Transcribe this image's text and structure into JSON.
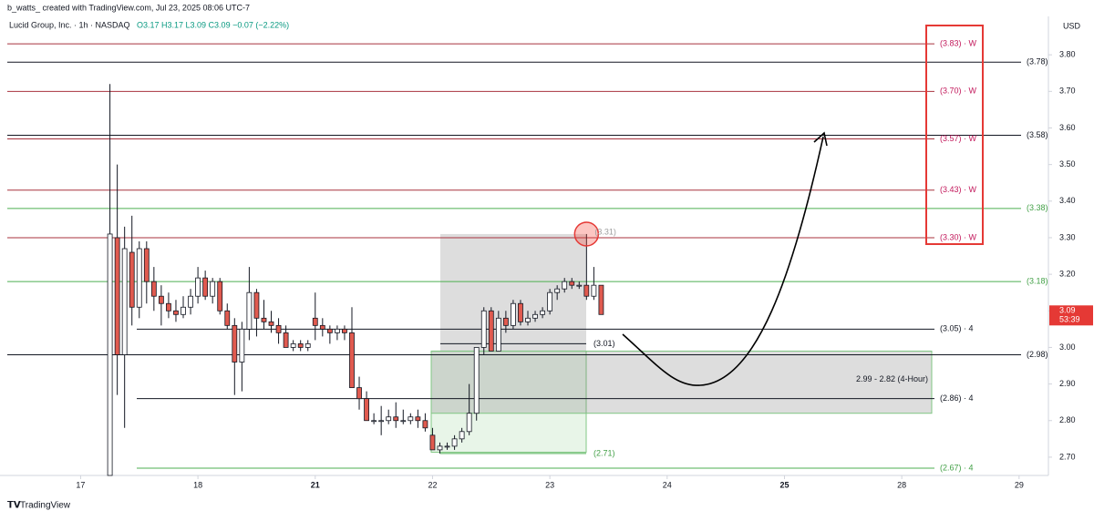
{
  "credit": "b_watts_ created with TradingView.com, Jul 23, 2025 08:06 UTC-7",
  "footer": "TradingView",
  "chart_data": {
    "type": "candlestick",
    "title": "Lucid Group, Inc. · 1h · NASDAQ",
    "ohlc_legend": "O3.17 H3.17 L3.09 C3.09 −0.07 (−2.22%)",
    "currency": "USD",
    "last_price": 3.09,
    "last_price_label": "3.09",
    "countdown": "53:39",
    "up_color": "#ffffff",
    "down_color": "#e05a4f",
    "x": [
      4,
      5,
      6,
      7,
      8,
      9,
      10,
      11,
      12,
      13,
      14,
      15,
      16,
      17,
      18,
      19,
      20,
      21,
      22,
      23,
      24,
      25,
      26,
      27,
      28,
      29,
      30,
      31,
      32,
      33,
      34,
      35,
      36,
      37,
      38,
      39,
      40,
      41,
      42,
      43,
      44,
      45,
      46,
      47,
      48,
      49,
      50,
      51,
      52,
      53,
      54,
      55,
      56,
      57,
      58,
      59,
      60,
      61,
      62,
      63,
      64,
      65,
      66,
      67,
      68,
      69,
      70,
      71
    ],
    "open": [
      2.65,
      3.3,
      2.98,
      3.26,
      3.11,
      3.27,
      3.18,
      3.14,
      3.12,
      3.1,
      3.09,
      3.11,
      3.14,
      3.19,
      3.14,
      3.18,
      3.1,
      3.06,
      2.96,
      3.05,
      3.15,
      3.08,
      3.07,
      3.06,
      3.04,
      3.0,
      3.01,
      3.0,
      3.08,
      3.06,
      3.05,
      3.04,
      3.05,
      3.04,
      2.89,
      2.86,
      2.8,
      2.8,
      2.8,
      2.81,
      2.8,
      2.8,
      2.81,
      2.8,
      2.76,
      2.72,
      2.73,
      2.73,
      2.75,
      2.77,
      2.82,
      3.0,
      3.1,
      2.99,
      3.08,
      3.06,
      3.12,
      3.07,
      3.08,
      3.09,
      3.1,
      3.15,
      3.16,
      3.18,
      3.17,
      3.17,
      3.14,
      3.17
    ],
    "high": [
      3.72,
      3.5,
      3.33,
      3.36,
      3.29,
      3.29,
      3.22,
      3.17,
      3.15,
      3.13,
      3.14,
      3.16,
      3.22,
      3.21,
      3.19,
      3.19,
      3.12,
      3.08,
      3.07,
      3.22,
      3.16,
      3.13,
      3.1,
      3.08,
      3.06,
      3.02,
      3.02,
      3.02,
      3.15,
      3.08,
      3.06,
      3.06,
      3.06,
      3.11,
      2.92,
      2.88,
      2.82,
      2.84,
      2.83,
      2.85,
      2.83,
      2.82,
      2.83,
      2.82,
      2.78,
      2.74,
      2.74,
      2.76,
      2.78,
      2.9,
      3.0,
      3.11,
      3.11,
      3.1,
      3.1,
      3.13,
      3.13,
      3.1,
      3.1,
      3.11,
      3.16,
      3.17,
      3.19,
      3.19,
      3.18,
      3.31,
      3.22,
      3.17
    ],
    "low": [
      2.65,
      2.87,
      2.78,
      3.06,
      3.08,
      3.12,
      3.1,
      3.06,
      3.08,
      3.07,
      3.08,
      3.09,
      3.12,
      3.13,
      3.12,
      3.09,
      3.05,
      2.87,
      2.88,
      3.02,
      3.03,
      3.05,
      3.04,
      3.01,
      3.0,
      2.99,
      2.99,
      2.99,
      3.02,
      3.03,
      3.01,
      3.02,
      3.02,
      2.89,
      2.83,
      2.8,
      2.79,
      2.76,
      2.79,
      2.78,
      2.79,
      2.79,
      2.78,
      2.77,
      2.72,
      2.71,
      2.72,
      2.72,
      2.74,
      2.76,
      2.8,
      2.98,
      2.99,
      2.99,
      3.04,
      3.05,
      3.06,
      3.06,
      3.07,
      3.08,
      3.09,
      3.13,
      3.15,
      3.16,
      3.16,
      3.13,
      3.13,
      3.09
    ],
    "close": [
      3.31,
      2.98,
      3.27,
      3.11,
      3.27,
      3.18,
      3.14,
      3.12,
      3.1,
      3.09,
      3.11,
      3.14,
      3.19,
      3.14,
      3.18,
      3.1,
      3.06,
      2.96,
      3.05,
      3.15,
      3.08,
      3.07,
      3.06,
      3.04,
      3.0,
      3.01,
      3.0,
      3.01,
      3.06,
      3.05,
      3.04,
      3.05,
      3.04,
      2.89,
      2.86,
      2.8,
      2.8,
      2.8,
      2.81,
      2.8,
      2.8,
      2.81,
      2.8,
      2.78,
      2.72,
      2.73,
      2.73,
      2.75,
      2.77,
      2.82,
      3.0,
      3.1,
      2.99,
      3.08,
      3.06,
      3.12,
      3.07,
      3.08,
      3.09,
      3.1,
      3.15,
      3.16,
      3.18,
      3.17,
      3.17,
      3.14,
      3.17,
      3.09
    ],
    "xlim": [
      -10,
      132
    ],
    "xticks": [
      {
        "value": 0,
        "label": "17"
      },
      {
        "value": 16,
        "label": "18"
      },
      {
        "value": 32,
        "label": "21"
      },
      {
        "value": 48,
        "label": "22"
      },
      {
        "value": 64,
        "label": "23"
      },
      {
        "value": 80,
        "label": "24"
      },
      {
        "value": 96,
        "label": "25"
      },
      {
        "value": 112,
        "label": "28"
      },
      {
        "value": 128,
        "label": "29"
      }
    ],
    "ylim": [
      2.65,
      3.9
    ],
    "yticks": [
      {
        "value": 2.7,
        "label": "2.70"
      },
      {
        "value": 2.8,
        "label": "2.80"
      },
      {
        "value": 2.9,
        "label": "2.90"
      },
      {
        "value": 3.0,
        "label": "3.00"
      },
      {
        "value": 3.1,
        "label": "3.10"
      },
      {
        "value": 3.2,
        "label": "3.20"
      },
      {
        "value": 3.3,
        "label": "3.30"
      },
      {
        "value": 3.4,
        "label": "3.40"
      },
      {
        "value": 3.5,
        "label": "3.50"
      },
      {
        "value": 3.6,
        "label": "3.60"
      },
      {
        "value": 3.7,
        "label": "3.70"
      },
      {
        "value": 3.8,
        "label": "3.80"
      }
    ],
    "levels": [
      {
        "value": 3.83,
        "label": "(3.83) · W",
        "color": "#a8323e"
      },
      {
        "value": 3.78,
        "label": "(3.78)",
        "color": "#131722"
      },
      {
        "value": 3.7,
        "label": "(3.70) · W",
        "color": "#a8323e"
      },
      {
        "value": 3.58,
        "label": "(3.58)",
        "color": "#131722"
      },
      {
        "value": 3.57,
        "label": "(3.57) · W",
        "color": "#a8323e"
      },
      {
        "value": 3.43,
        "label": "(3.43) · W",
        "color": "#a8323e"
      },
      {
        "value": 3.38,
        "label": "(3.38)",
        "color": "#4caf50"
      },
      {
        "value": 3.3,
        "label": "(3.30) · W",
        "color": "#a8323e"
      },
      {
        "value": 3.18,
        "label": "(3.18)",
        "color": "#4caf50"
      },
      {
        "value": 3.05,
        "label": "(3.05) · 4",
        "color": "#131722"
      },
      {
        "value": 3.01,
        "label": "(3.01)",
        "color": "#131722"
      },
      {
        "value": 2.98,
        "label": "(2.98)",
        "color": "#131722"
      },
      {
        "value": 2.86,
        "label": "(2.86) · 4",
        "color": "#131722"
      },
      {
        "value": 2.71,
        "label": "(2.71)",
        "color": "#4caf50"
      },
      {
        "value": 2.67,
        "label": "(2.67) · 4",
        "color": "#4caf50"
      }
    ],
    "marked_high": {
      "value": 3.31,
      "label": "(3.31)"
    },
    "zone": {
      "label": "2.99 - 2.82 (4-Hour)",
      "high": 2.99,
      "low": 2.82
    }
  }
}
